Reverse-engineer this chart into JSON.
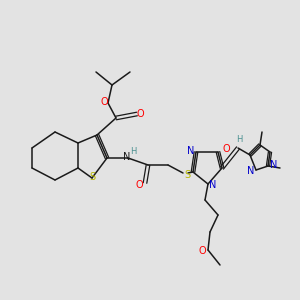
{
  "bg_color": "#e3e3e3",
  "bond_color": "#1a1a1a",
  "fig_size": [
    3.0,
    3.0
  ],
  "dpi": 100,
  "xlim": [
    0,
    300
  ],
  "ylim": [
    0,
    300
  ]
}
